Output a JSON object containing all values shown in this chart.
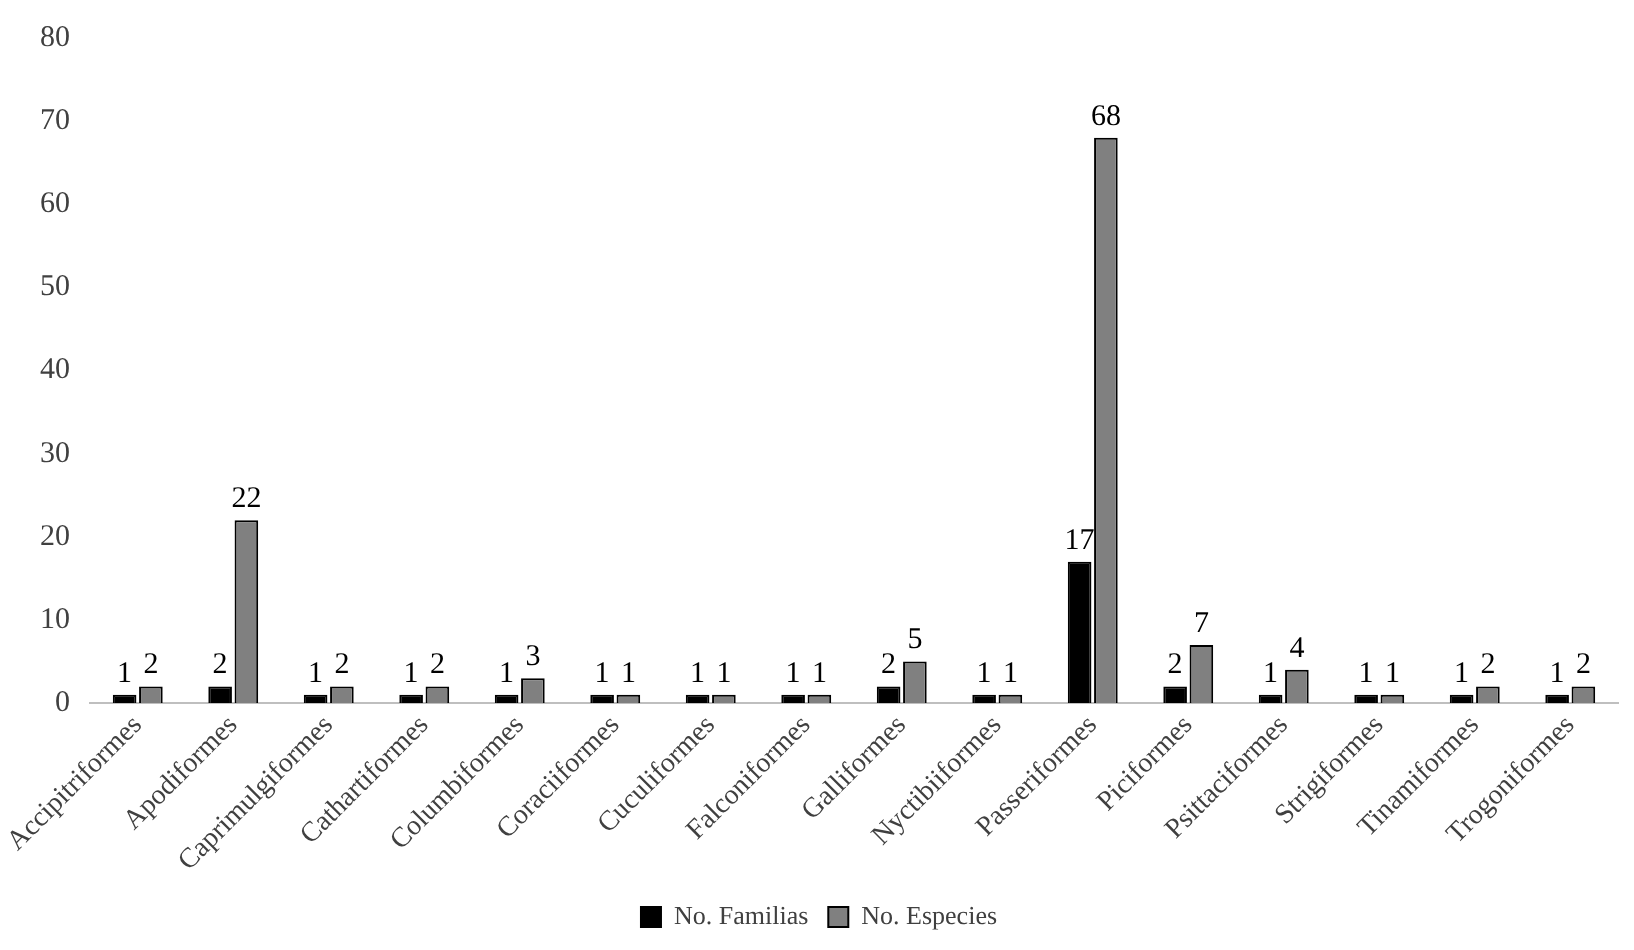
{
  "chart_data": {
    "type": "bar",
    "categories": [
      "Accipitriformes",
      "Apodiformes",
      "Caprimulgiformes",
      "Cathartiformes",
      "Columbiformes",
      "Coraciiformes",
      "Cuculiformes",
      "Falconiformes",
      "Galliformes",
      "Nyctibiiformes",
      "Passeriformes",
      "Piciformes",
      "Psittaciformes",
      "Strigiformes",
      "Tinamiformes",
      "Trogoniformes"
    ],
    "series": [
      {
        "name": "No. Familias",
        "color": "#000000",
        "values": [
          1,
          2,
          1,
          1,
          1,
          1,
          1,
          1,
          2,
          1,
          17,
          2,
          1,
          1,
          1,
          1
        ]
      },
      {
        "name": "No. Especies",
        "color": "#808080",
        "values": [
          2,
          22,
          2,
          2,
          3,
          1,
          1,
          1,
          5,
          1,
          68,
          7,
          4,
          1,
          2,
          2
        ]
      }
    ],
    "ylim": [
      0,
      80
    ],
    "yticks": [
      0,
      10,
      20,
      30,
      40,
      50,
      60,
      70,
      80
    ],
    "grid": false,
    "legend": "bottom",
    "data_labels": true
  }
}
